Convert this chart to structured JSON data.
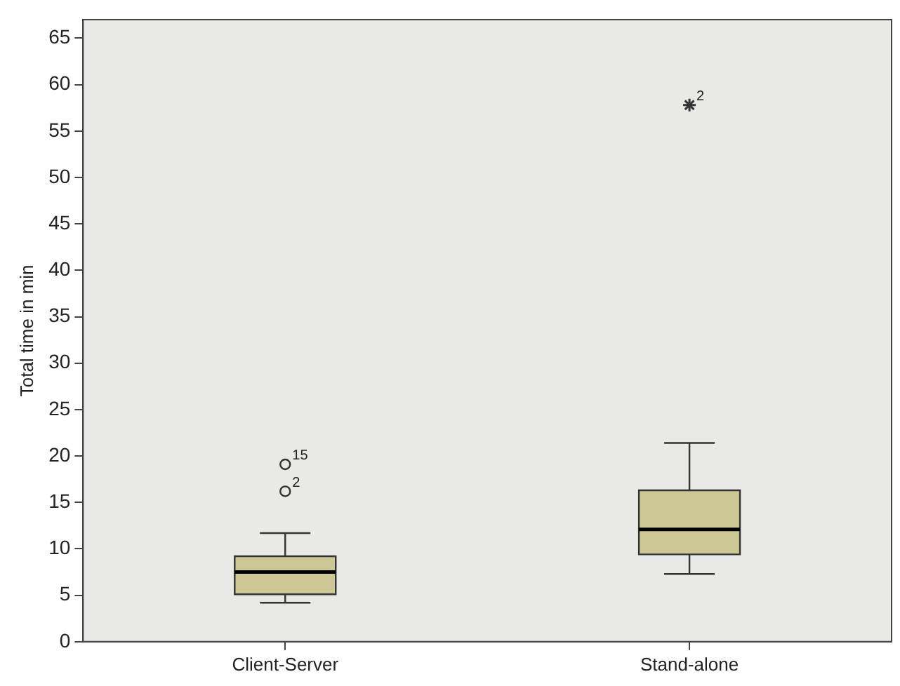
{
  "chart_data": {
    "type": "box",
    "ylabel": "Total time in min",
    "categories": [
      "Client-Server",
      "Stand-alone"
    ],
    "boxes": [
      {
        "low": 4.2,
        "q1": 5.1,
        "median": 7.5,
        "q3": 9.2,
        "high": 11.7,
        "outliers": [
          16.2,
          19.1
        ]
      },
      {
        "low": 7.3,
        "q1": 9.4,
        "median": 12.1,
        "q3": 16.3,
        "high": 21.4
      }
    ],
    "color": "#cdc796",
    "series": [
      {
        "type": "scatter",
        "marker": "cross",
        "x": [
          "Stand-alone"
        ],
        "values": [
          57.8
        ],
        "color": "#333333"
      }
    ],
    "ylim": [
      0,
      67
    ],
    "yticks": [
      0,
      5,
      10,
      15,
      20,
      25,
      30,
      35,
      40,
      45,
      50,
      55,
      60,
      65
    ],
    "annotations": [
      "2",
      "15",
      "2"
    ],
    "grid": false,
    "legend": false
  }
}
